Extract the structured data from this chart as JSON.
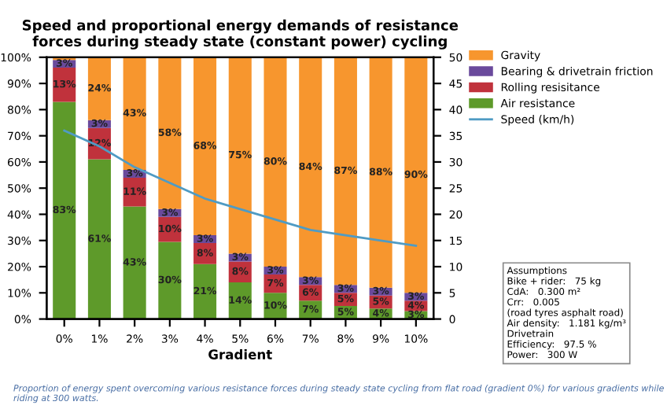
{
  "chart_data": {
    "type": "bar",
    "stacked": true,
    "title": "Speed and proportional energy demands of resistance forces during steady state (constant power) cycling",
    "xlabel": "Gradient",
    "categories": [
      "0%",
      "1%",
      "2%",
      "3%",
      "4%",
      "5%",
      "6%",
      "7%",
      "8%",
      "9%",
      "10%"
    ],
    "series": [
      {
        "name": "Air resistance",
        "color": "#5e9a2a",
        "values": [
          83,
          61,
          43,
          29.5,
          21,
          14,
          10,
          7,
          5,
          4,
          3
        ],
        "value_labels": [
          "83%",
          "61%",
          "43%",
          "30%",
          "21%",
          "14%",
          "10%",
          "7%",
          "5%",
          "4%",
          "3%"
        ]
      },
      {
        "name": "Rolling resisitance",
        "color": "#c0323c",
        "values": [
          13,
          12,
          11,
          9.5,
          8,
          8,
          7,
          6,
          5,
          5,
          4
        ],
        "value_labels": [
          "13%",
          "12%",
          "11%",
          "10%",
          "8%",
          "8%",
          "7%",
          "6%",
          "5%",
          "5%",
          "4%"
        ]
      },
      {
        "name": "Bearing & drivetrain friction",
        "color": "#6a4a9c",
        "values": [
          3,
          3,
          3,
          3,
          3,
          3,
          3,
          3,
          3,
          3,
          3
        ],
        "value_labels": [
          "3%",
          "3%",
          "3%",
          "3%",
          "3%",
          "3%",
          "3%",
          "3%",
          "3%",
          "3%",
          "3%"
        ]
      },
      {
        "name": "Gravity",
        "color": "#f7962e",
        "values": [
          1,
          24,
          43,
          58,
          68,
          75,
          80,
          84,
          87,
          88,
          90
        ],
        "value_labels": [
          null,
          "24%",
          "43%",
          "58%",
          "68%",
          "75%",
          "80%",
          "84%",
          "87%",
          "88%",
          "90%"
        ]
      },
      {
        "name": "Speed (km/h)",
        "type": "line",
        "axis": "y2",
        "color": "#4f9bc4",
        "values": [
          36,
          33,
          29,
          26,
          23,
          21,
          19,
          17,
          16,
          15,
          14
        ]
      }
    ],
    "legend": "right",
    "ylim": [
      0,
      100
    ],
    "yticks": [
      {
        "value": 0,
        "label": "0%"
      },
      {
        "value": 10,
        "label": "10%"
      },
      {
        "value": 20,
        "label": "20%"
      },
      {
        "value": 30,
        "label": "30%"
      },
      {
        "value": 40,
        "label": "40%"
      },
      {
        "value": 50,
        "label": "50%"
      },
      {
        "value": 60,
        "label": "60%"
      },
      {
        "value": 70,
        "label": "70%"
      },
      {
        "value": 80,
        "label": "80%"
      },
      {
        "value": 90,
        "label": "90%"
      },
      {
        "value": 100,
        "label": "100%"
      }
    ],
    "y2lim": [
      0,
      50
    ],
    "y2ticks": [
      0,
      5,
      10,
      15,
      20,
      25,
      30,
      35,
      40,
      45,
      50
    ],
    "annotations": [
      "Assumptions\nBike + rider:   75 kg\nCdA:   0.300 m²\nCrr:   0.005\n(road tyres asphalt road)\nAir density:   1.181 kg/m³\nDrivetrain\nEfficiency:   97.5 %\nPower:   300 W",
      "Proportion of energy spent overcoming various resistance forces during steady state cycling from flat road (gradient 0%) for various gradients while riding at 300 watts."
    ]
  }
}
